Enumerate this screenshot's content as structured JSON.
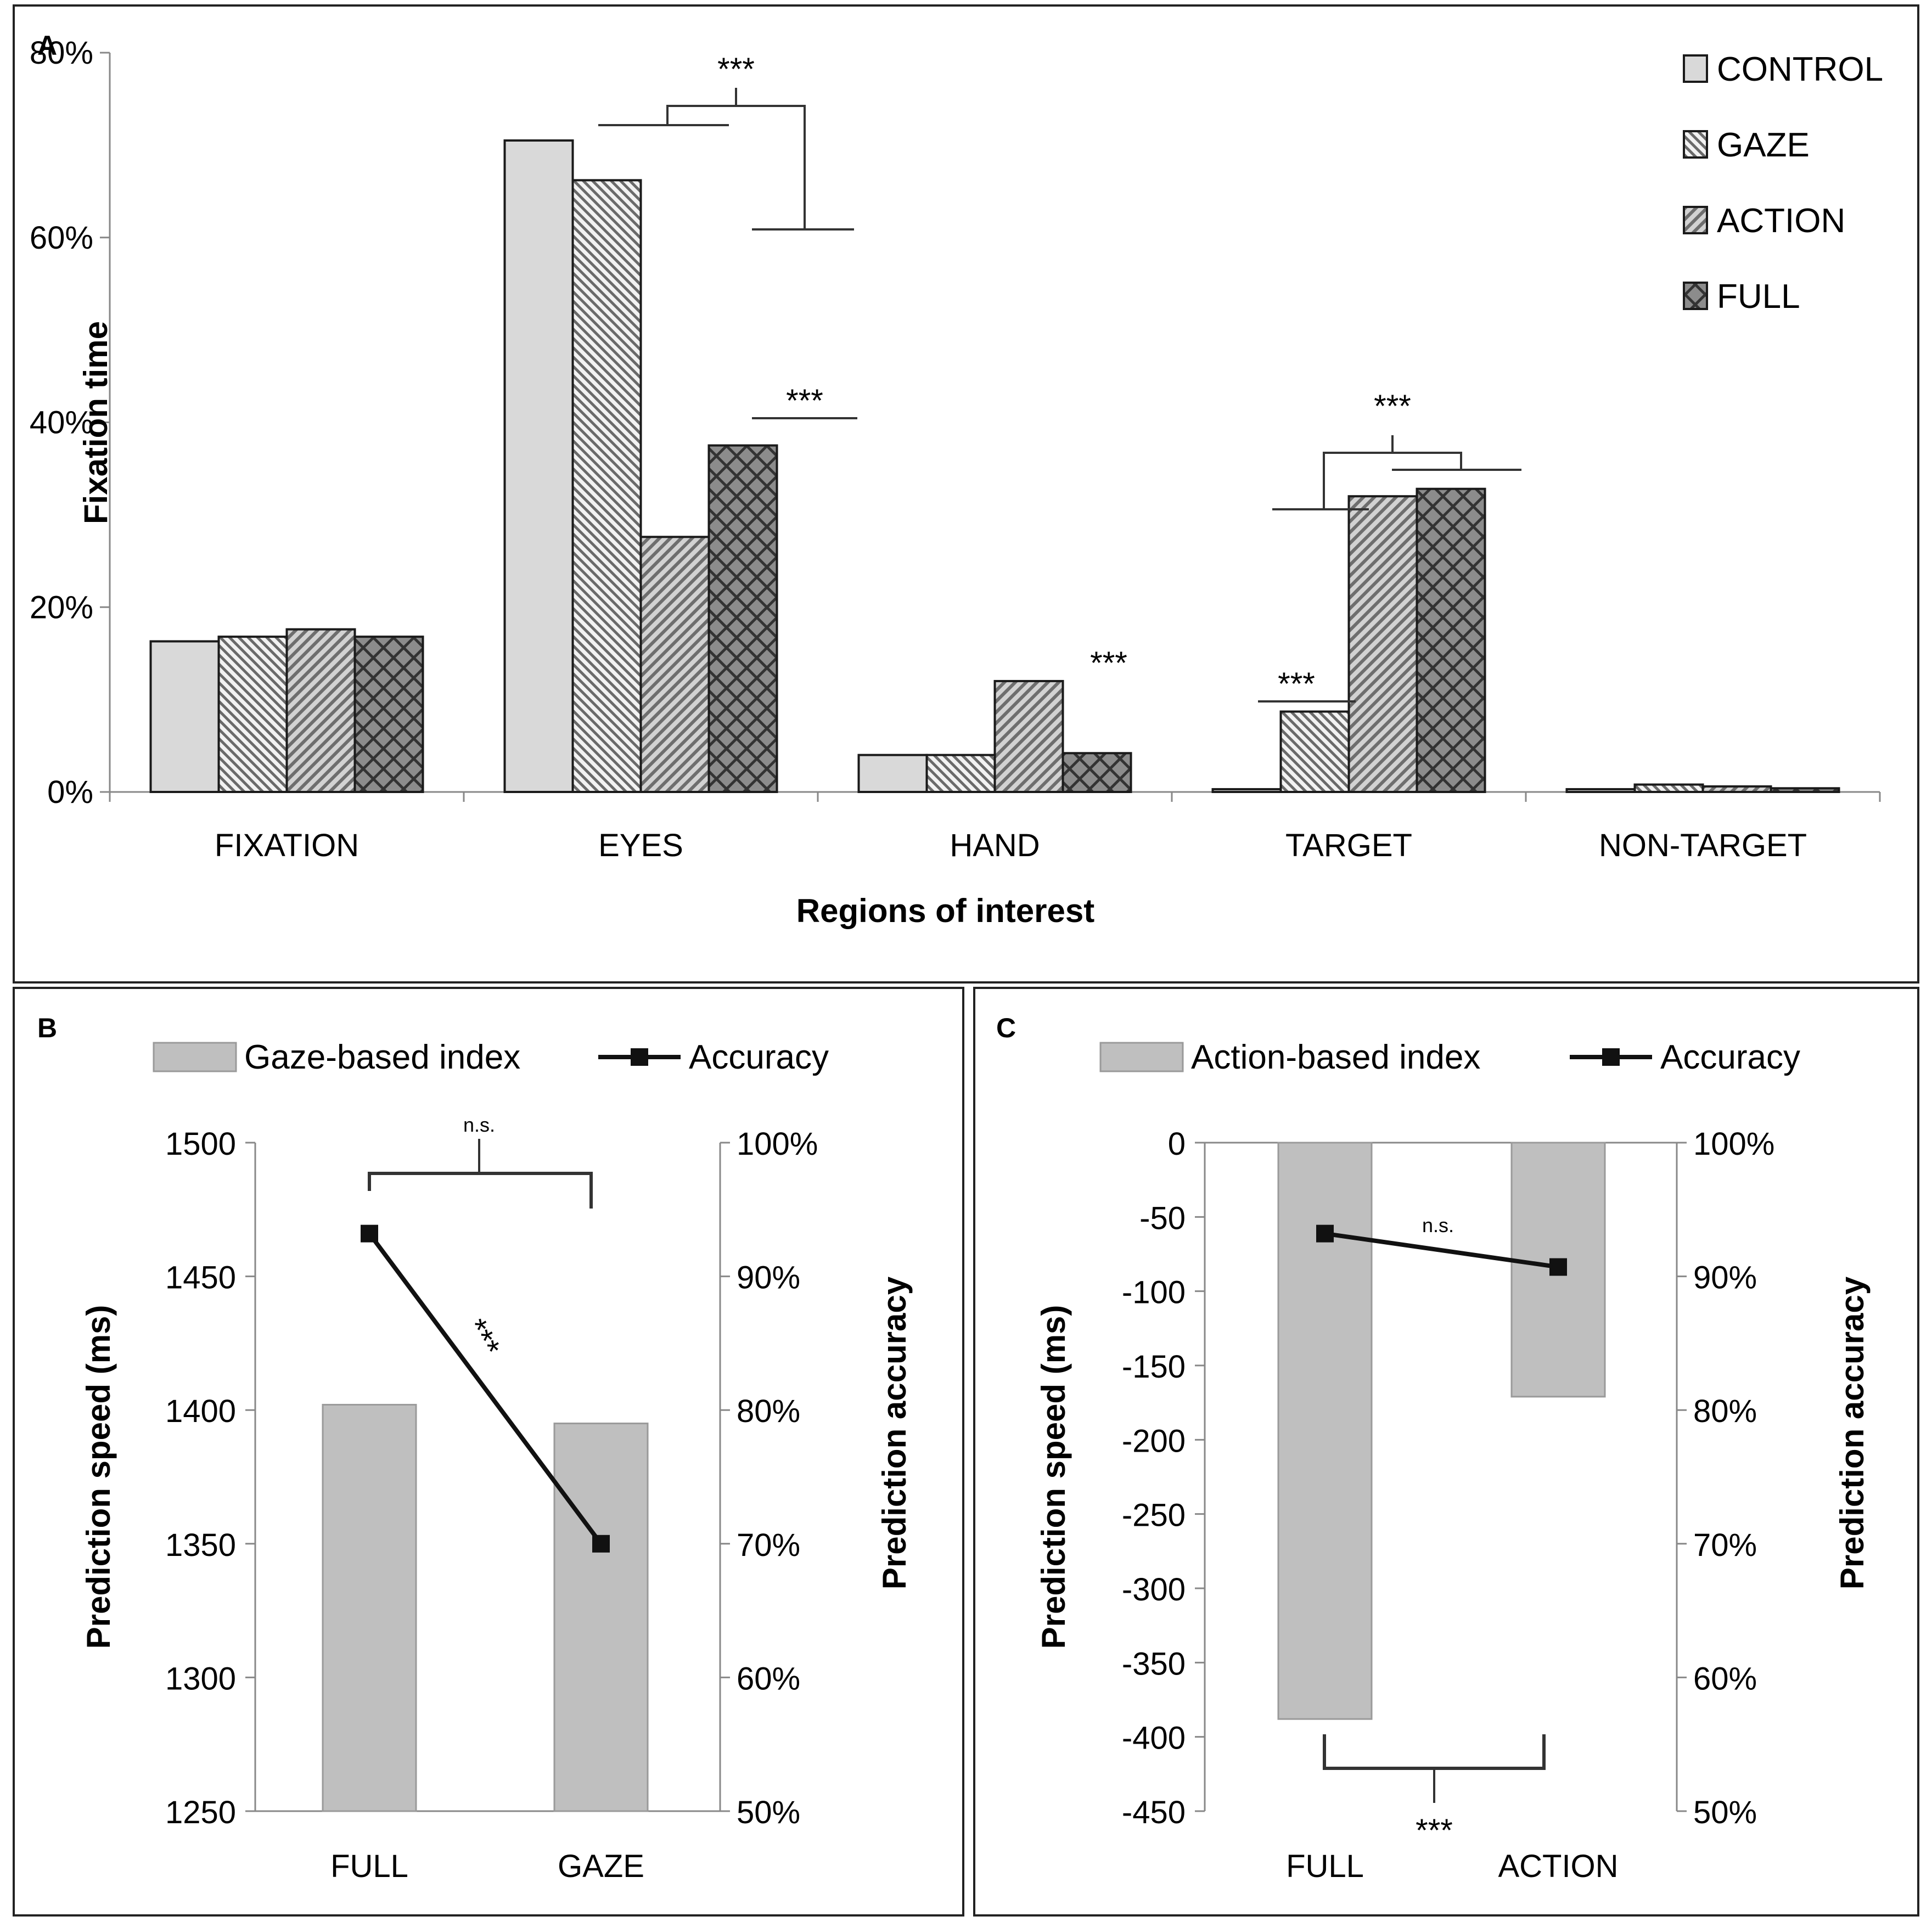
{
  "panels": {
    "a": {
      "label": "A"
    },
    "b": {
      "label": "B"
    },
    "c": {
      "label": "C"
    }
  },
  "chart_data": [
    {
      "id": "A",
      "type": "bar",
      "title": "",
      "xlabel": "Regions of interest",
      "ylabel": "Fixation time",
      "ylim": [
        0,
        80
      ],
      "y_ticks": [
        "0%",
        "20%",
        "40%",
        "60%",
        "80%"
      ],
      "categories": [
        "FIXATION",
        "EYES",
        "HAND",
        "TARGET",
        "NON-TARGET"
      ],
      "legend_position": "top-right",
      "series": [
        {
          "name": "CONTROL",
          "pattern": "solid-light",
          "values": [
            16.3,
            70.5,
            4.0,
            0.3,
            0.3
          ]
        },
        {
          "name": "GAZE",
          "pattern": "dense-hatch",
          "values": [
            16.8,
            66.2,
            4.0,
            8.7,
            0.8
          ]
        },
        {
          "name": "ACTION",
          "pattern": "diagonal-hatch",
          "values": [
            17.6,
            27.6,
            12.0,
            32.0,
            0.6
          ]
        },
        {
          "name": "FULL",
          "pattern": "crosshatch-dark",
          "values": [
            16.8,
            37.5,
            4.2,
            32.8,
            0.4
          ]
        }
      ],
      "annotations": [
        {
          "text": "***",
          "category": "EYES",
          "comparison": "CONTROL+GAZE vs ACTION+FULL"
        },
        {
          "text": "***",
          "category": "EYES",
          "comparison": "ACTION vs FULL"
        },
        {
          "text": "***",
          "category": "HAND",
          "comparison": "ACTION"
        },
        {
          "text": "***",
          "category": "TARGET",
          "comparison": "CONTROL+GAZE vs ACTION+FULL"
        },
        {
          "text": "***",
          "category": "TARGET",
          "comparison": "CONTROL vs GAZE"
        }
      ]
    },
    {
      "id": "B",
      "type": "bar",
      "xlabel": "",
      "ylabel": "Prediction speed (ms)",
      "ylabel_right": "Prediction accuracy",
      "ylim": [
        1250,
        1500
      ],
      "ylim_right": [
        50,
        100
      ],
      "y_ticks": [
        "1250",
        "1300",
        "1350",
        "1400",
        "1450",
        "1500"
      ],
      "y_ticks_right": [
        "50%",
        "60%",
        "70%",
        "80%",
        "90%",
        "100%"
      ],
      "categories": [
        "FULL",
        "GAZE"
      ],
      "legend_position": "top",
      "series": [
        {
          "name": "Gaze-based index",
          "type": "bar",
          "axis": "left",
          "values": [
            1402,
            1395
          ]
        },
        {
          "name": "Accuracy",
          "type": "line",
          "axis": "right",
          "values": [
            93.2,
            70.0
          ]
        }
      ],
      "annotations": [
        {
          "text": "n.s.",
          "comparison": "bars FULL vs GAZE"
        },
        {
          "text": "***",
          "comparison": "accuracy FULL vs GAZE"
        }
      ]
    },
    {
      "id": "C",
      "type": "bar",
      "xlabel": "",
      "ylabel": "Prediction speed (ms)",
      "ylabel_right": "Prediction accuracy",
      "ylim": [
        -450,
        0
      ],
      "ylim_right": [
        50,
        100
      ],
      "y_ticks": [
        "-450",
        "-400",
        "-350",
        "-300",
        "-250",
        "-200",
        "-150",
        "-100",
        "-50",
        "0"
      ],
      "y_ticks_right": [
        "50%",
        "60%",
        "70%",
        "80%",
        "90%",
        "100%"
      ],
      "categories": [
        "FULL",
        "ACTION"
      ],
      "legend_position": "top",
      "series": [
        {
          "name": "Action-based index",
          "type": "bar",
          "axis": "left",
          "values": [
            -388,
            -171
          ]
        },
        {
          "name": "Accuracy",
          "type": "line",
          "axis": "right",
          "values": [
            93.2,
            90.7
          ]
        }
      ],
      "annotations": [
        {
          "text": "n.s.",
          "comparison": "accuracy FULL vs ACTION"
        },
        {
          "text": "***",
          "comparison": "bars FULL vs ACTION"
        }
      ]
    }
  ]
}
